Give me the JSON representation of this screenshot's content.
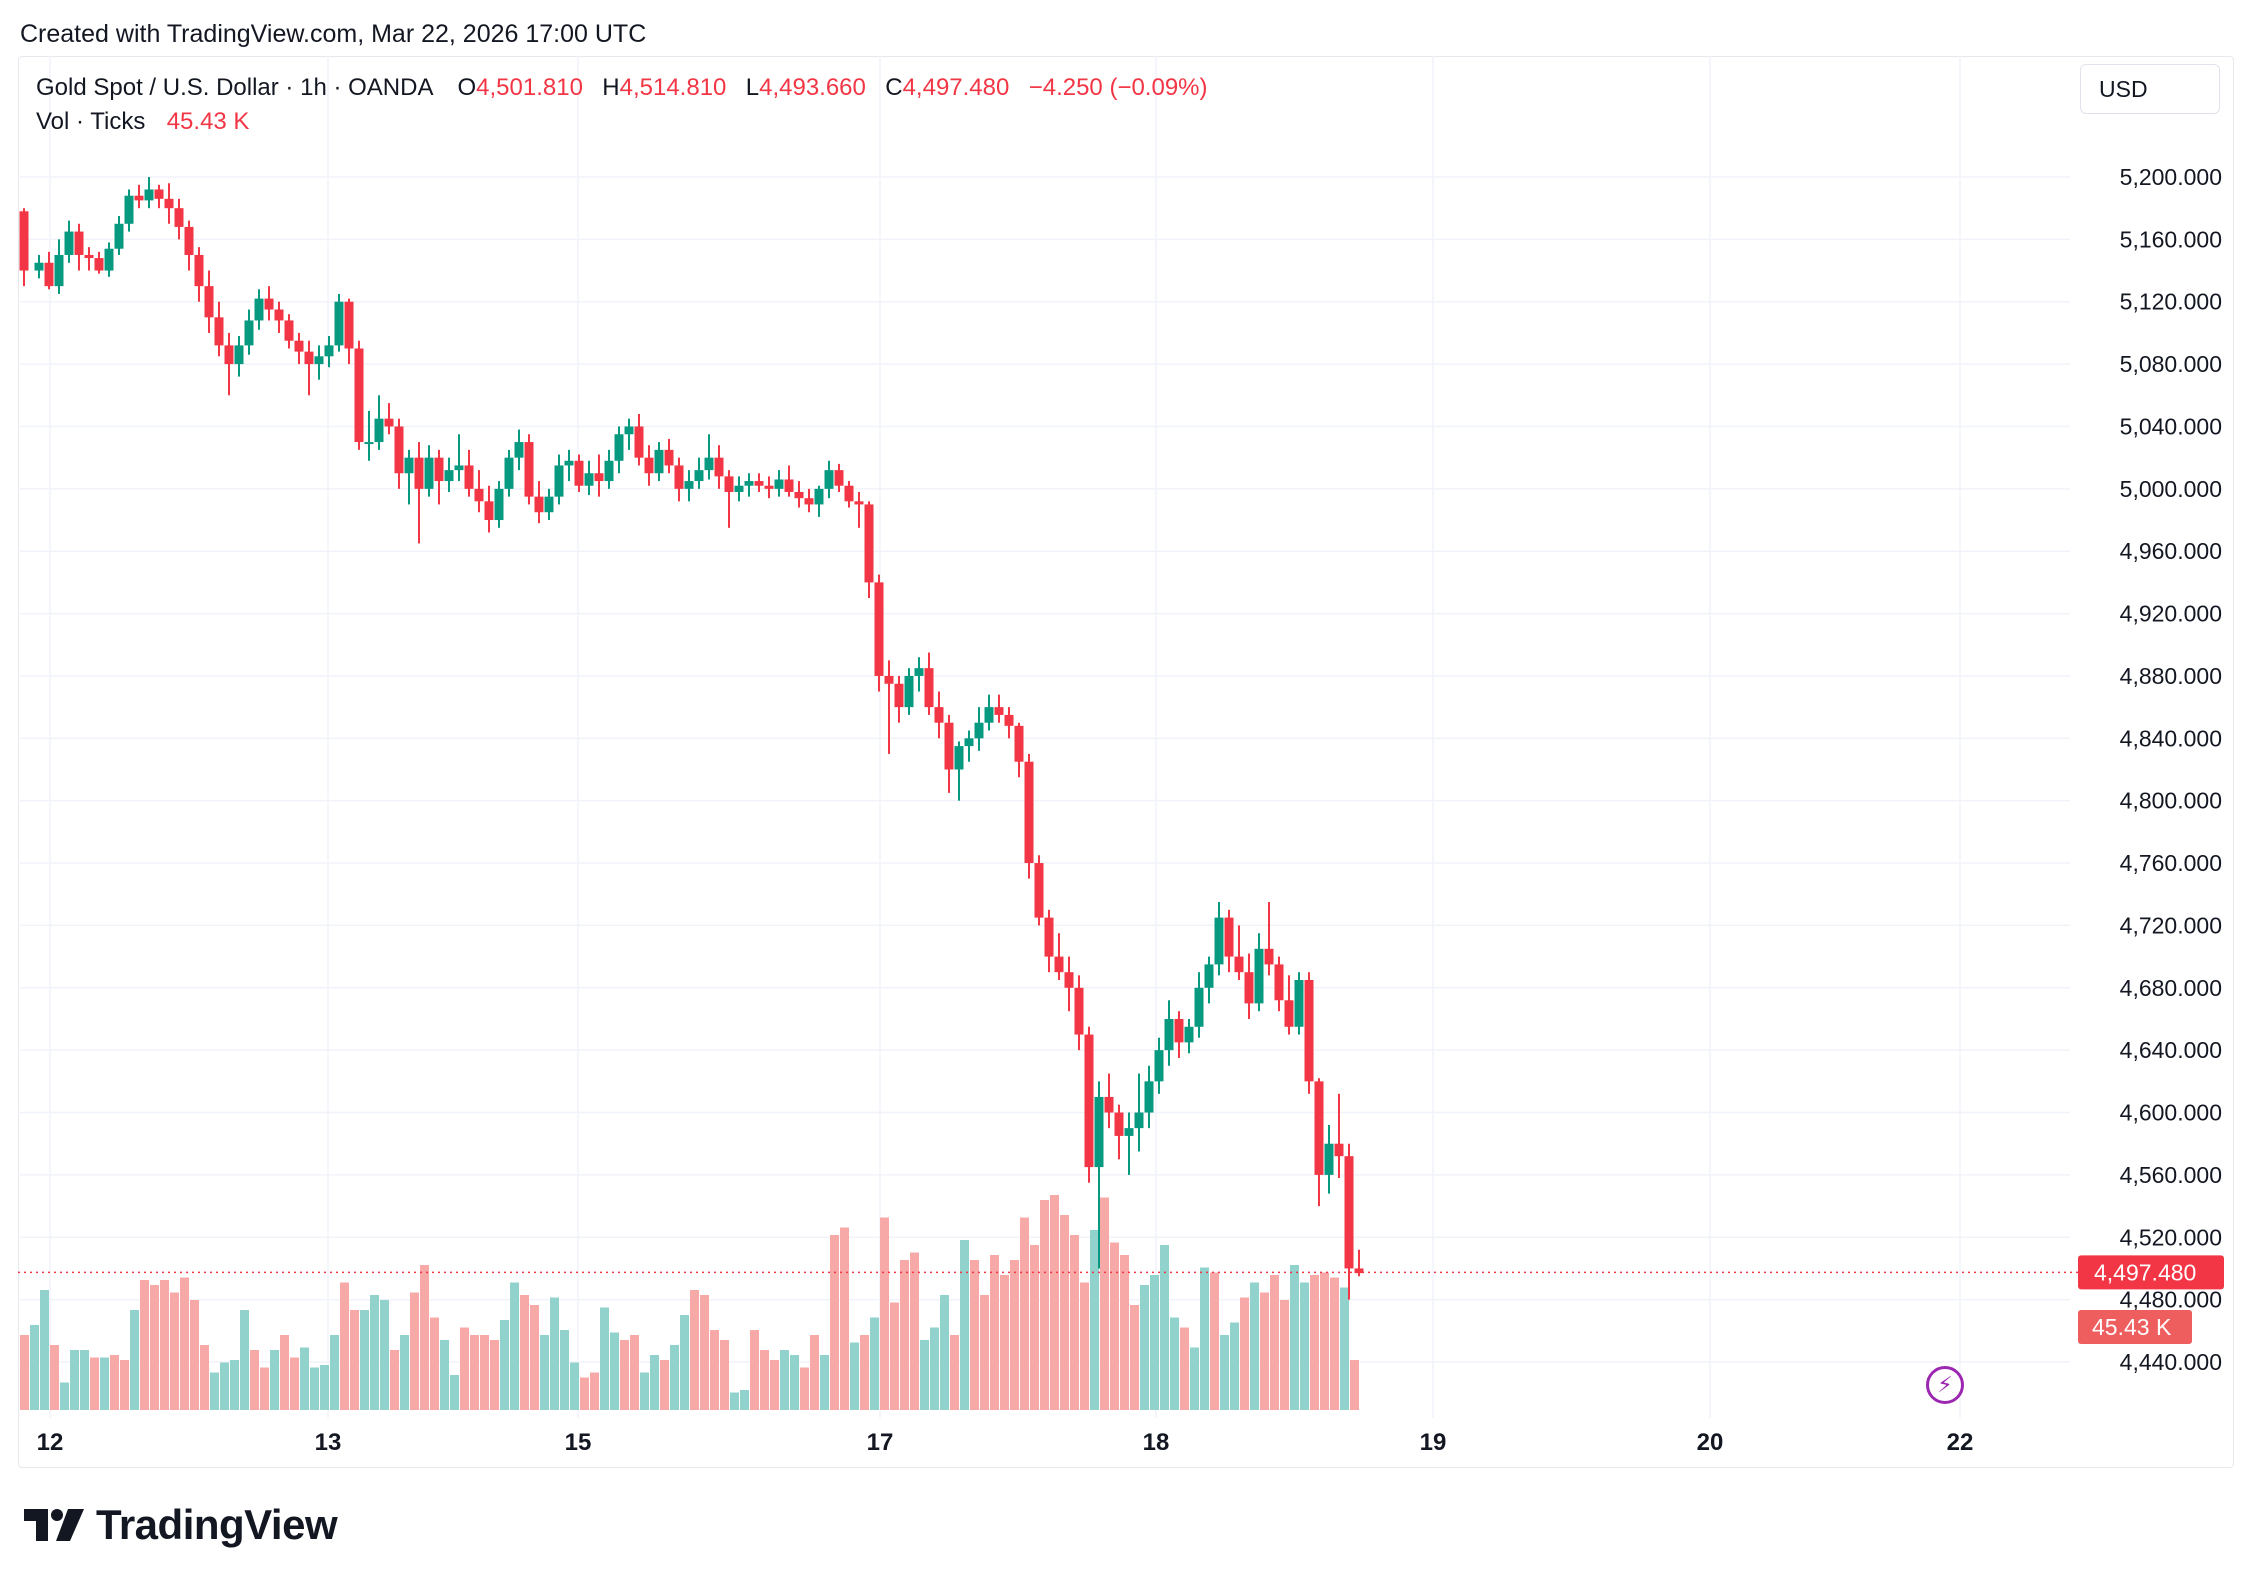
{
  "header": {
    "created_text": "Created with TradingView.com, Mar 22, 2026 17:00 UTC"
  },
  "legend": {
    "symbol": "Gold Spot / U.S. Dollar · 1h · OANDA",
    "o_label": "O",
    "o_value": "4,501.810",
    "h_label": "H",
    "h_value": "4,514.810",
    "l_label": "L",
    "l_value": "4,493.660",
    "c_label": "C",
    "c_value": "4,497.480",
    "change": "−4.250 (−0.09%)",
    "volume_label": "Vol · Ticks",
    "volume_value": "45.43 K"
  },
  "currency_button": "USD",
  "price_tag": "4,497.480",
  "volume_tag": "45.43 K",
  "brand": "TradingView",
  "colors": {
    "up": "#089981",
    "down": "#f23645",
    "vol_up": "#92d2cc",
    "vol_down": "#f7a9a7",
    "grid": "#f0f3fa"
  },
  "chart_data": {
    "type": "candlestick",
    "y_axis": {
      "ticks": [
        "4,440.000",
        "4,480.000",
        "4,520.000",
        "4,560.000",
        "4,600.000",
        "4,640.000",
        "4,680.000",
        "4,720.000",
        "4,760.000",
        "4,800.000",
        "4,840.000",
        "4,880.000",
        "4,920.000",
        "4,960.000",
        "5,000.000",
        "5,040.000",
        "5,080.000",
        "5,120.000",
        "5,160.000",
        "5,200.000"
      ],
      "range": [
        4420,
        5240
      ]
    },
    "x_axis": {
      "ticks": [
        "12",
        "13",
        "15",
        "17",
        "18",
        "19",
        "20",
        "22"
      ]
    },
    "current_price": 4497.48,
    "ohlc_points": [
      [
        0,
        5178,
        5180,
        5130,
        5140
      ],
      [
        6,
        5140,
        5150,
        5135,
        5145
      ],
      [
        10,
        5145,
        5152,
        5128,
        5130
      ],
      [
        14,
        5130,
        5160,
        5125,
        5150
      ],
      [
        18,
        5150,
        5172,
        5145,
        5165
      ],
      [
        22,
        5165,
        5170,
        5140,
        5150
      ],
      [
        26,
        5150,
        5155,
        5140,
        5148
      ],
      [
        30,
        5148,
        5152,
        5138,
        5140
      ],
      [
        34,
        5140,
        5158,
        5136,
        5154
      ],
      [
        38,
        5154,
        5175,
        5150,
        5170
      ],
      [
        42,
        5170,
        5192,
        5165,
        5188
      ],
      [
        46,
        5188,
        5195,
        5180,
        5185
      ],
      [
        50,
        5185,
        5200,
        5180,
        5192
      ],
      [
        54,
        5192,
        5195,
        5180,
        5186
      ],
      [
        58,
        5186,
        5196,
        5170,
        5180
      ],
      [
        62,
        5180,
        5186,
        5160,
        5168
      ],
      [
        66,
        5168,
        5172,
        5140,
        5150
      ],
      [
        70,
        5150,
        5155,
        5120,
        5130
      ],
      [
        74,
        5130,
        5140,
        5100,
        5110
      ],
      [
        78,
        5110,
        5120,
        5085,
        5092
      ],
      [
        82,
        5092,
        5100,
        5060,
        5080
      ],
      [
        86,
        5080,
        5098,
        5072,
        5092
      ],
      [
        90,
        5092,
        5115,
        5086,
        5108
      ],
      [
        94,
        5108,
        5128,
        5102,
        5122
      ],
      [
        98,
        5122,
        5130,
        5108,
        5115
      ],
      [
        102,
        5115,
        5120,
        5100,
        5108
      ],
      [
        106,
        5108,
        5112,
        5090,
        5095
      ],
      [
        110,
        5095,
        5100,
        5080,
        5088
      ],
      [
        114,
        5088,
        5095,
        5060,
        5080
      ],
      [
        118,
        5080,
        5092,
        5070,
        5085
      ],
      [
        122,
        5085,
        5098,
        5078,
        5092
      ],
      [
        126,
        5092,
        5125,
        5088,
        5120
      ],
      [
        130,
        5120,
        5122,
        5080,
        5090
      ],
      [
        134,
        5090,
        5095,
        5025,
        5030
      ],
      [
        138,
        5030,
        5050,
        5018,
        5030
      ],
      [
        142,
        5030,
        5060,
        5025,
        5045
      ],
      [
        146,
        5045,
        5055,
        5035,
        5040
      ],
      [
        150,
        5040,
        5045,
        5000,
        5010
      ],
      [
        154,
        5010,
        5025,
        4990,
        5020
      ],
      [
        158,
        5020,
        5030,
        4965,
        5000
      ],
      [
        162,
        5000,
        5028,
        4995,
        5020
      ],
      [
        166,
        5020,
        5025,
        4990,
        5005
      ],
      [
        170,
        5005,
        5020,
        4998,
        5012
      ],
      [
        174,
        5012,
        5035,
        5005,
        5015
      ],
      [
        178,
        5015,
        5025,
        4995,
        5000
      ],
      [
        182,
        5000,
        5012,
        4985,
        4992
      ],
      [
        186,
        4992,
        5002,
        4972,
        4980
      ],
      [
        190,
        4980,
        5005,
        4975,
        5000
      ],
      [
        194,
        5000,
        5025,
        4995,
        5020
      ],
      [
        198,
        5020,
        5038,
        5012,
        5030
      ],
      [
        202,
        5030,
        5035,
        4990,
        4995
      ],
      [
        206,
        4995,
        5005,
        4978,
        4985
      ],
      [
        210,
        4985,
        5000,
        4980,
        4995
      ],
      [
        214,
        4995,
        5022,
        4990,
        5015
      ],
      [
        218,
        5015,
        5025,
        5005,
        5018
      ],
      [
        222,
        5018,
        5022,
        4998,
        5002
      ],
      [
        226,
        5002,
        5018,
        4996,
        5010
      ],
      [
        230,
        5010,
        5022,
        4995,
        5005
      ],
      [
        234,
        5005,
        5025,
        5000,
        5018
      ],
      [
        238,
        5018,
        5040,
        5010,
        5035
      ],
      [
        242,
        5035,
        5045,
        5025,
        5040
      ],
      [
        246,
        5040,
        5048,
        5015,
        5020
      ],
      [
        250,
        5020,
        5028,
        5002,
        5010
      ],
      [
        254,
        5010,
        5030,
        5005,
        5025
      ],
      [
        258,
        5025,
        5032,
        5010,
        5015
      ],
      [
        262,
        5015,
        5020,
        4992,
        5000
      ],
      [
        266,
        5000,
        5012,
        4992,
        5005
      ],
      [
        270,
        5005,
        5020,
        5000,
        5012
      ],
      [
        274,
        5012,
        5035,
        5006,
        5020
      ],
      [
        278,
        5020,
        5028,
        5000,
        5008
      ],
      [
        282,
        5008,
        5012,
        4975,
        4998
      ],
      [
        286,
        4998,
        5008,
        4992,
        5002
      ],
      [
        290,
        5002,
        5010,
        4995,
        5005
      ],
      [
        294,
        5005,
        5010,
        4998,
        5002
      ],
      [
        298,
        5002,
        5008,
        4994,
        5000
      ],
      [
        302,
        5000,
        5012,
        4995,
        5006
      ],
      [
        306,
        5006,
        5015,
        4995,
        4998
      ],
      [
        310,
        4998,
        5005,
        4988,
        4994
      ],
      [
        314,
        4994,
        5000,
        4985,
        4990
      ],
      [
        318,
        4990,
        5002,
        4982,
        5000
      ],
      [
        322,
        5000,
        5018,
        4994,
        5012
      ],
      [
        326,
        5012,
        5016,
        4998,
        5002
      ],
      [
        330,
        5002,
        5005,
        4988,
        4992
      ],
      [
        334,
        4992,
        4998,
        4975,
        4990
      ],
      [
        338,
        4990,
        4992,
        4930,
        4940
      ],
      [
        342,
        4940,
        4945,
        4870,
        4880
      ],
      [
        346,
        4880,
        4890,
        4830,
        4875
      ],
      [
        350,
        4875,
        4880,
        4850,
        4860
      ],
      [
        354,
        4860,
        4885,
        4855,
        4880
      ],
      [
        358,
        4880,
        4892,
        4870,
        4885
      ],
      [
        362,
        4885,
        4895,
        4855,
        4860
      ],
      [
        366,
        4860,
        4870,
        4840,
        4850
      ],
      [
        370,
        4850,
        4855,
        4805,
        4820
      ],
      [
        374,
        4820,
        4838,
        4800,
        4835
      ],
      [
        378,
        4835,
        4845,
        4825,
        4840
      ],
      [
        382,
        4840,
        4860,
        4832,
        4850
      ],
      [
        386,
        4850,
        4868,
        4845,
        4860
      ],
      [
        390,
        4860,
        4868,
        4850,
        4855
      ],
      [
        394,
        4855,
        4860,
        4840,
        4848
      ],
      [
        398,
        4848,
        4850,
        4815,
        4825
      ],
      [
        402,
        4825,
        4830,
        4750,
        4760
      ],
      [
        406,
        4760,
        4765,
        4720,
        4725
      ],
      [
        410,
        4725,
        4730,
        4690,
        4700
      ],
      [
        414,
        4700,
        4715,
        4685,
        4690
      ],
      [
        418,
        4690,
        4700,
        4665,
        4680
      ],
      [
        422,
        4680,
        4688,
        4640,
        4650
      ],
      [
        426,
        4650,
        4655,
        4555,
        4565
      ],
      [
        430,
        4565,
        4620,
        4500,
        4610
      ],
      [
        434,
        4610,
        4625,
        4590,
        4600
      ],
      [
        438,
        4600,
        4605,
        4570,
        4585
      ],
      [
        442,
        4585,
        4600,
        4560,
        4590
      ],
      [
        446,
        4590,
        4625,
        4575,
        4600
      ],
      [
        450,
        4600,
        4630,
        4590,
        4620
      ],
      [
        454,
        4620,
        4648,
        4612,
        4640
      ],
      [
        458,
        4640,
        4672,
        4630,
        4660
      ],
      [
        462,
        4660,
        4665,
        4635,
        4645
      ],
      [
        466,
        4645,
        4660,
        4638,
        4655
      ],
      [
        470,
        4655,
        4690,
        4648,
        4680
      ],
      [
        474,
        4680,
        4700,
        4670,
        4695
      ],
      [
        478,
        4695,
        4735,
        4688,
        4725
      ],
      [
        482,
        4725,
        4730,
        4690,
        4700
      ],
      [
        486,
        4700,
        4720,
        4685,
        4690
      ],
      [
        490,
        4690,
        4702,
        4660,
        4670
      ],
      [
        494,
        4670,
        4715,
        4665,
        4705
      ],
      [
        498,
        4705,
        4735,
        4688,
        4695
      ],
      [
        502,
        4695,
        4700,
        4665,
        4672
      ],
      [
        506,
        4672,
        4688,
        4650,
        4655
      ],
      [
        510,
        4655,
        4690,
        4650,
        4685
      ],
      [
        514,
        4685,
        4690,
        4612,
        4620
      ],
      [
        518,
        4620,
        4622,
        4540,
        4560
      ],
      [
        522,
        4560,
        4592,
        4548,
        4580
      ],
      [
        526,
        4580,
        4612,
        4558,
        4572
      ],
      [
        530,
        4572,
        4580,
        4480,
        4500
      ],
      [
        534,
        4500,
        4512,
        4495,
        4497
      ]
    ],
    "volume_points": [
      [
        0,
        30,
        0
      ],
      [
        4,
        34,
        1
      ],
      [
        8,
        48,
        1
      ],
      [
        12,
        26,
        0
      ],
      [
        16,
        11,
        1
      ],
      [
        20,
        24,
        1
      ],
      [
        24,
        24,
        1
      ],
      [
        28,
        21,
        0
      ],
      [
        32,
        21,
        1
      ],
      [
        36,
        22,
        0
      ],
      [
        40,
        20,
        0
      ],
      [
        44,
        40,
        1
      ],
      [
        48,
        52,
        0
      ],
      [
        52,
        50,
        0
      ],
      [
        56,
        52,
        0
      ],
      [
        60,
        47,
        0
      ],
      [
        64,
        53,
        0
      ],
      [
        68,
        44,
        0
      ],
      [
        72,
        26,
        0
      ],
      [
        76,
        15,
        1
      ],
      [
        80,
        19,
        1
      ],
      [
        84,
        20,
        1
      ],
      [
        88,
        40,
        1
      ],
      [
        92,
        24,
        0
      ],
      [
        96,
        17,
        0
      ],
      [
        100,
        24,
        1
      ],
      [
        104,
        30,
        0
      ],
      [
        108,
        21,
        0
      ],
      [
        112,
        25,
        1
      ],
      [
        116,
        17,
        1
      ],
      [
        120,
        18,
        1
      ],
      [
        124,
        30,
        1
      ],
      [
        128,
        51,
        0
      ],
      [
        132,
        40,
        0
      ],
      [
        136,
        40,
        1
      ],
      [
        140,
        46,
        1
      ],
      [
        144,
        44,
        1
      ],
      [
        148,
        24,
        0
      ],
      [
        152,
        30,
        1
      ],
      [
        156,
        47,
        0
      ],
      [
        160,
        58,
        0
      ],
      [
        164,
        37,
        0
      ],
      [
        168,
        28,
        1
      ],
      [
        172,
        14,
        1
      ],
      [
        176,
        33,
        0
      ],
      [
        180,
        30,
        0
      ],
      [
        184,
        30,
        0
      ],
      [
        188,
        28,
        0
      ],
      [
        192,
        36,
        1
      ],
      [
        196,
        51,
        1
      ],
      [
        200,
        46,
        0
      ],
      [
        204,
        42,
        0
      ],
      [
        208,
        30,
        1
      ],
      [
        212,
        45,
        1
      ],
      [
        216,
        32,
        1
      ],
      [
        220,
        19,
        1
      ],
      [
        224,
        13,
        0
      ],
      [
        228,
        15,
        0
      ],
      [
        232,
        41,
        1
      ],
      [
        236,
        31,
        1
      ],
      [
        240,
        28,
        0
      ],
      [
        244,
        30,
        0
      ],
      [
        248,
        15,
        1
      ],
      [
        252,
        22,
        1
      ],
      [
        256,
        20,
        0
      ],
      [
        260,
        26,
        1
      ],
      [
        264,
        38,
        1
      ],
      [
        268,
        48,
        0
      ],
      [
        272,
        46,
        0
      ],
      [
        276,
        32,
        0
      ],
      [
        280,
        28,
        0
      ],
      [
        284,
        7,
        1
      ],
      [
        288,
        8,
        1
      ],
      [
        292,
        32,
        0
      ],
      [
        296,
        24,
        0
      ],
      [
        300,
        20,
        0
      ],
      [
        304,
        24,
        1
      ],
      [
        308,
        22,
        1
      ],
      [
        312,
        17,
        0
      ],
      [
        316,
        30,
        0
      ],
      [
        320,
        22,
        1
      ],
      [
        324,
        70,
        0
      ],
      [
        328,
        73,
        0
      ],
      [
        332,
        27,
        1
      ],
      [
        336,
        30,
        0
      ],
      [
        340,
        37,
        1
      ],
      [
        344,
        77,
        0
      ],
      [
        348,
        43,
        0
      ],
      [
        352,
        60,
        0
      ],
      [
        356,
        63,
        0
      ],
      [
        360,
        28,
        1
      ],
      [
        364,
        33,
        1
      ],
      [
        368,
        46,
        1
      ],
      [
        372,
        30,
        0
      ],
      [
        376,
        68,
        1
      ],
      [
        380,
        60,
        0
      ],
      [
        384,
        46,
        0
      ],
      [
        388,
        62,
        0
      ],
      [
        392,
        54,
        0
      ],
      [
        396,
        60,
        0
      ],
      [
        400,
        77,
        0
      ],
      [
        404,
        66,
        0
      ],
      [
        408,
        84,
        0
      ],
      [
        412,
        86,
        0
      ],
      [
        416,
        78,
        0
      ],
      [
        420,
        70,
        0
      ],
      [
        424,
        51,
        0
      ],
      [
        428,
        72,
        1
      ],
      [
        432,
        85,
        0
      ],
      [
        436,
        67,
        0
      ],
      [
        440,
        62,
        0
      ],
      [
        444,
        42,
        0
      ],
      [
        448,
        50,
        1
      ],
      [
        452,
        54,
        1
      ],
      [
        456,
        66,
        1
      ],
      [
        460,
        37,
        1
      ],
      [
        464,
        33,
        0
      ],
      [
        468,
        25,
        1
      ],
      [
        472,
        57,
        1
      ],
      [
        476,
        55,
        0
      ],
      [
        480,
        30,
        1
      ],
      [
        484,
        35,
        1
      ],
      [
        488,
        45,
        0
      ],
      [
        492,
        51,
        1
      ],
      [
        496,
        47,
        0
      ],
      [
        500,
        54,
        0
      ],
      [
        504,
        44,
        0
      ],
      [
        508,
        58,
        1
      ],
      [
        512,
        51,
        1
      ],
      [
        516,
        54,
        0
      ],
      [
        520,
        55,
        0
      ],
      [
        524,
        53,
        0
      ],
      [
        528,
        49,
        1
      ],
      [
        532,
        20,
        0
      ]
    ]
  }
}
